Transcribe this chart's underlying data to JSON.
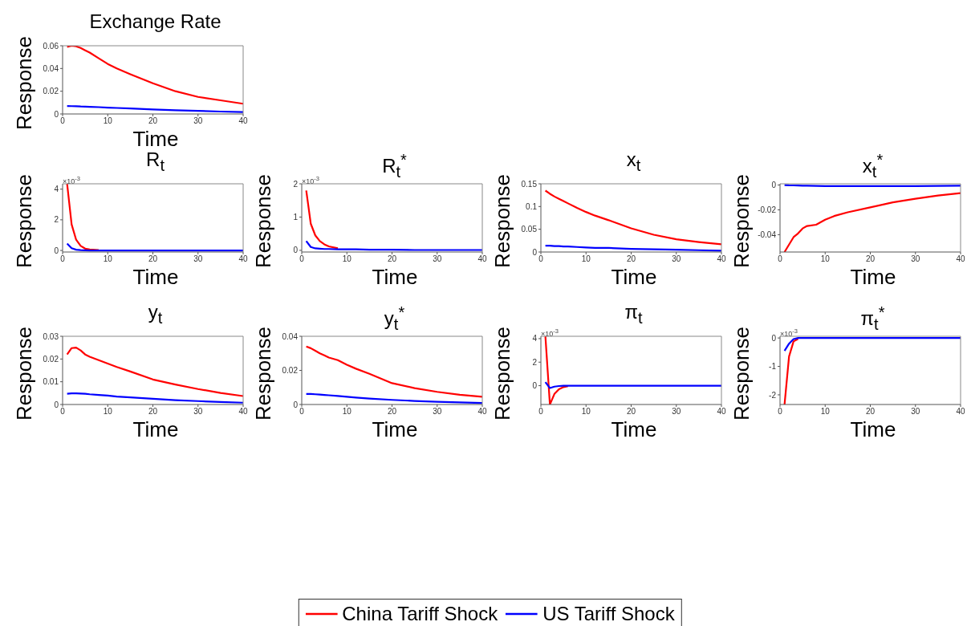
{
  "chart_data": [
    {
      "type": "line",
      "title": "Exchange Rate",
      "xlabel": "Time",
      "ylabel": "Response",
      "legend": "bottom",
      "x": [
        1,
        2,
        3,
        4,
        5,
        6,
        8,
        10,
        12,
        15,
        20,
        25,
        30,
        35,
        40
      ],
      "xlim": [
        0,
        40
      ],
      "xticks": [
        0,
        10,
        20,
        30,
        40
      ],
      "ylim": [
        0,
        0.06
      ],
      "yticks": [
        0,
        0.02,
        0.04,
        0.06
      ],
      "series": [
        {
          "name": "China Tariff Shock",
          "color": "#ff0000",
          "values": [
            0.059,
            0.06,
            0.0595,
            0.058,
            0.056,
            0.054,
            0.049,
            0.044,
            0.04,
            0.035,
            0.027,
            0.02,
            0.015,
            0.012,
            0.009
          ]
        },
        {
          "name": "US Tariff Shock",
          "color": "#0000ff",
          "values": [
            0.007,
            0.0069,
            0.0068,
            0.0066,
            0.0065,
            0.0063,
            0.006,
            0.0056,
            0.0053,
            0.0048,
            0.004,
            0.0033,
            0.0027,
            0.0021,
            0.0017
          ]
        }
      ]
    },
    {
      "type": "line",
      "title": "R$_{t}$",
      "xlabel": "Time",
      "ylabel": "Response",
      "annotations": [
        "×10$^{-3}$"
      ],
      "x": [
        1,
        2,
        3,
        4,
        5,
        6,
        8,
        10,
        12,
        15,
        20,
        25,
        30,
        35,
        40
      ],
      "xlim": [
        0,
        40
      ],
      "xticks": [
        0,
        10,
        20,
        30,
        40
      ],
      "ylim": [
        -0.1,
        4.35
      ],
      "yticks": [
        0,
        2,
        4
      ],
      "series": [
        {
          "color": "#ff0000",
          "values": [
            4.35,
            1.7,
            0.7,
            0.3,
            0.12,
            0.06,
            0.02,
            null,
            null,
            null,
            null,
            null,
            null,
            null,
            null
          ]
        },
        {
          "color": "#0000ff",
          "values": [
            0.45,
            0.15,
            0.05,
            0.02,
            0.01,
            0,
            0,
            0,
            0,
            0,
            0,
            0,
            0,
            0,
            0
          ]
        }
      ]
    },
    {
      "type": "line",
      "title": "R$_{t}$$^{*}$",
      "xlabel": "Time",
      "ylabel": "Response",
      "annotations": [
        "×10$^{-3}$"
      ],
      "x": [
        1,
        2,
        3,
        4,
        5,
        6,
        8,
        10,
        12,
        15,
        20,
        25,
        30,
        35,
        40
      ],
      "xlim": [
        0,
        40
      ],
      "xticks": [
        0,
        10,
        20,
        30,
        40
      ],
      "ylim": [
        -0.05,
        2
      ],
      "yticks": [
        0,
        1,
        2
      ],
      "series": [
        {
          "color": "#ff0000",
          "values": [
            1.8,
            0.8,
            0.45,
            0.28,
            0.18,
            0.12,
            0.06,
            null,
            null,
            null,
            null,
            null,
            null,
            null,
            null
          ]
        },
        {
          "color": "#0000ff",
          "values": [
            0.28,
            0.1,
            0.06,
            0.05,
            0.04,
            0.04,
            0.03,
            0.03,
            0.03,
            0.02,
            0.02,
            0.01,
            0.01,
            0.01,
            0.01
          ]
        }
      ]
    },
    {
      "type": "line",
      "title": "x$_{t}$",
      "xlabel": "Time",
      "ylabel": "Response",
      "x": [
        1,
        2,
        3,
        4,
        5,
        6,
        8,
        10,
        12,
        15,
        20,
        25,
        30,
        35,
        40
      ],
      "xlim": [
        0,
        40
      ],
      "xticks": [
        0,
        10,
        20,
        30,
        40
      ],
      "ylim": [
        0,
        0.15
      ],
      "yticks": [
        0,
        0.05,
        0.1,
        0.15
      ],
      "series": [
        {
          "color": "#ff0000",
          "values": [
            0.135,
            0.128,
            0.122,
            0.117,
            0.112,
            0.107,
            0.097,
            0.088,
            0.08,
            0.07,
            0.052,
            0.038,
            0.028,
            0.022,
            0.017
          ]
        },
        {
          "color": "#0000ff",
          "values": [
            0.014,
            0.014,
            0.013,
            0.013,
            0.012,
            0.012,
            0.011,
            0.01,
            0.009,
            0.009,
            0.007,
            0.006,
            0.005,
            0.004,
            0.003
          ]
        }
      ]
    },
    {
      "type": "line",
      "title": "x$_{t}$$^{*}$",
      "xlabel": "Time",
      "ylabel": "Response",
      "x": [
        1,
        2,
        3,
        4,
        5,
        6,
        8,
        10,
        12,
        15,
        20,
        25,
        30,
        35,
        40
      ],
      "xlim": [
        0,
        40
      ],
      "xticks": [
        0,
        10,
        20,
        30,
        40
      ],
      "ylim": [
        -0.054,
        0.001
      ],
      "yticks": [
        -0.04,
        -0.02,
        0
      ],
      "series": [
        {
          "color": "#ff0000",
          "values": [
            -0.054,
            -0.048,
            -0.042,
            -0.039,
            -0.035,
            -0.033,
            -0.032,
            -0.028,
            -0.025,
            -0.022,
            -0.018,
            -0.014,
            -0.011,
            -0.0085,
            -0.0065
          ]
        },
        {
          "color": "#0000ff",
          "values": [
            0,
            -0.0002,
            -0.0003,
            -0.0004,
            -0.0005,
            -0.0006,
            -0.0007,
            -0.0008,
            -0.0008,
            -0.0009,
            -0.0009,
            -0.0009,
            -0.0008,
            -0.0007,
            -0.0006
          ]
        }
      ]
    },
    {
      "type": "line",
      "title": "y$_{t}$",
      "xlabel": "Time",
      "ylabel": "Response",
      "x": [
        1,
        2,
        3,
        4,
        5,
        6,
        8,
        10,
        12,
        15,
        20,
        25,
        30,
        35,
        40
      ],
      "xlim": [
        0,
        40
      ],
      "xticks": [
        0,
        10,
        20,
        30,
        40
      ],
      "ylim": [
        0,
        0.03
      ],
      "yticks": [
        0,
        0.01,
        0.02,
        0.03
      ],
      "series": [
        {
          "color": "#ff0000",
          "values": [
            0.022,
            0.0248,
            0.025,
            0.0238,
            0.022,
            0.021,
            0.0195,
            0.018,
            0.0165,
            0.0145,
            0.011,
            0.0088,
            0.0068,
            0.0051,
            0.0037
          ]
        },
        {
          "color": "#0000ff",
          "values": [
            0.0047,
            0.0049,
            0.0049,
            0.0048,
            0.0047,
            0.0045,
            0.0042,
            0.0039,
            0.0035,
            0.0031,
            0.0025,
            0.0019,
            0.0015,
            0.0011,
            0.0008
          ]
        }
      ]
    },
    {
      "type": "line",
      "title": "y$_{t}$$^{*}$",
      "xlabel": "Time",
      "ylabel": "Response",
      "x": [
        1,
        2,
        3,
        4,
        5,
        6,
        8,
        10,
        12,
        15,
        20,
        25,
        30,
        35,
        40
      ],
      "xlim": [
        0,
        40
      ],
      "xticks": [
        0,
        10,
        20,
        30,
        40
      ],
      "ylim": [
        0,
        0.04
      ],
      "yticks": [
        0,
        0.02,
        0.04
      ],
      "series": [
        {
          "color": "#ff0000",
          "values": [
            0.034,
            0.033,
            0.0315,
            0.03,
            0.0288,
            0.0275,
            0.026,
            0.0233,
            0.021,
            0.018,
            0.0125,
            0.0096,
            0.0074,
            0.0057,
            0.0045
          ]
        },
        {
          "color": "#0000ff",
          "values": [
            0.0062,
            0.0062,
            0.006,
            0.0058,
            0.0056,
            0.0054,
            0.005,
            0.0045,
            0.0041,
            0.0035,
            0.0027,
            0.0021,
            0.0016,
            0.0012,
            0.0009
          ]
        }
      ]
    },
    {
      "type": "line",
      "title": "π$_{t}$",
      "xlabel": "Time",
      "ylabel": "Response",
      "annotations": [
        "×10$^{-3}$"
      ],
      "x": [
        1,
        2,
        3,
        4,
        5,
        6,
        8,
        10,
        12,
        15,
        20,
        25,
        30,
        35,
        40
      ],
      "xlim": [
        0,
        40
      ],
      "xticks": [
        0,
        10,
        20,
        30,
        40
      ],
      "ylim": [
        -1.6,
        4.2
      ],
      "yticks": [
        0,
        2,
        4
      ],
      "series": [
        {
          "color": "#ff0000",
          "values": [
            4.2,
            -1.6,
            -0.7,
            -0.3,
            -0.12,
            -0.05,
            null,
            null,
            null,
            null,
            null,
            null,
            null,
            null,
            null
          ]
        },
        {
          "color": "#0000ff",
          "values": [
            0.3,
            -0.2,
            -0.08,
            -0.03,
            -0.01,
            0,
            0,
            0,
            0,
            0,
            0,
            0,
            0,
            0,
            0
          ]
        }
      ]
    },
    {
      "type": "line",
      "title": "π$_{t}$$^{*}$",
      "xlabel": "Time",
      "ylabel": "Response",
      "annotations": [
        "×10$^{-3}$"
      ],
      "x": [
        1,
        2,
        3,
        4,
        5,
        6,
        8,
        10,
        12,
        15,
        20,
        25,
        30,
        35,
        40
      ],
      "xlim": [
        0,
        40
      ],
      "xticks": [
        0,
        10,
        20,
        30,
        40
      ],
      "ylim": [
        -2.34,
        0.06
      ],
      "yticks": [
        -2,
        -1,
        0
      ],
      "series": [
        {
          "color": "#ff0000",
          "values": [
            -2.34,
            -0.65,
            -0.12,
            -0.03,
            null,
            null,
            null,
            null,
            null,
            null,
            null,
            null,
            null,
            null,
            null
          ]
        },
        {
          "color": "#0000ff",
          "values": [
            -0.45,
            -0.2,
            -0.04,
            0,
            0,
            0,
            0,
            0,
            0,
            0,
            0,
            0,
            0,
            0,
            0
          ]
        }
      ]
    }
  ]
}
